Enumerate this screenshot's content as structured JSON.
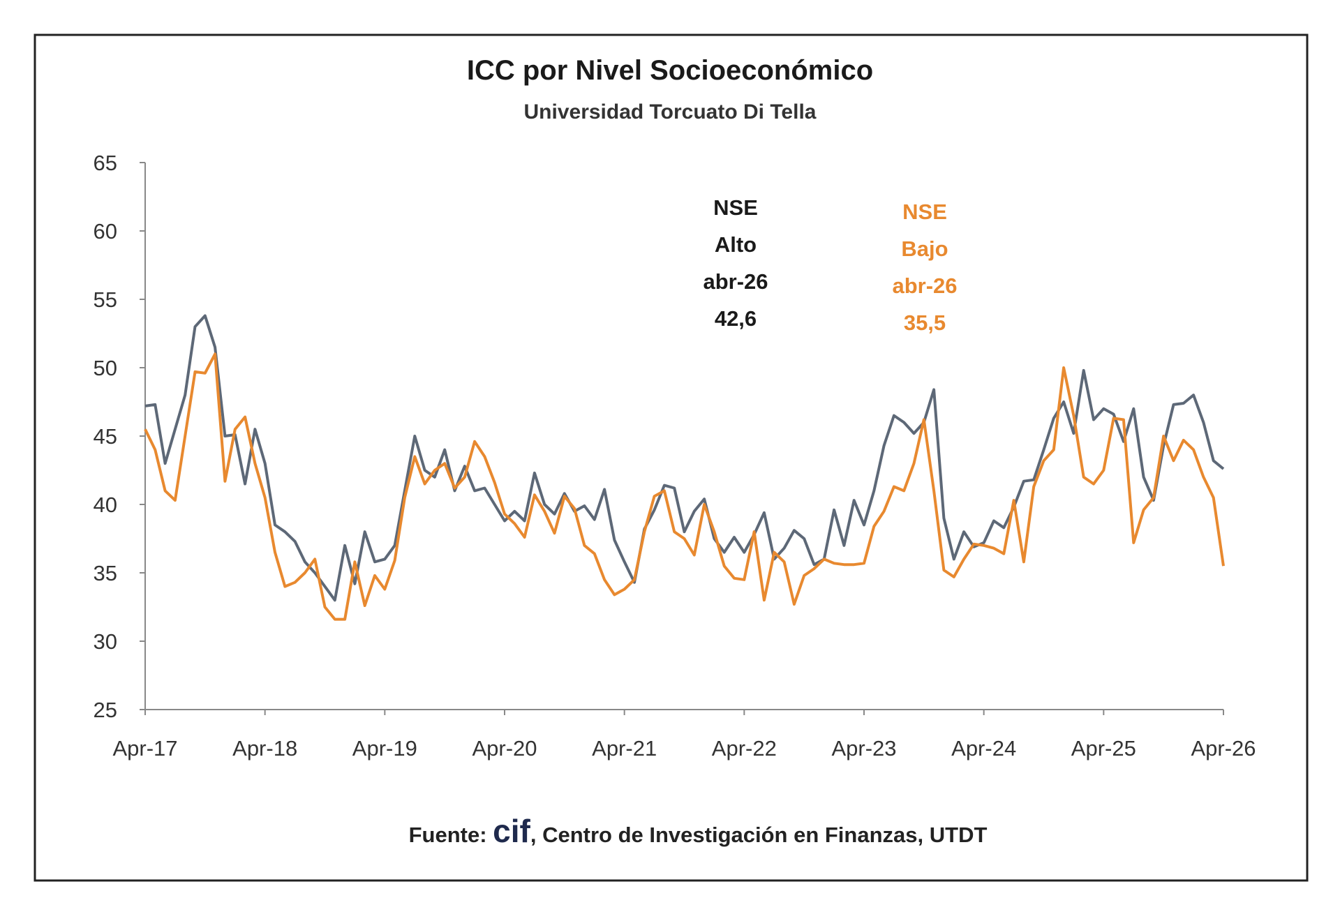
{
  "chart_data": {
    "type": "line",
    "title": "ICC por Nivel Socioeconómico",
    "subtitle": "Universidad Torcuato Di Tella",
    "xlabel": "",
    "ylabel": "",
    "ylim": [
      25,
      65
    ],
    "yticks": [
      "65",
      "60",
      "55",
      "50",
      "45",
      "40",
      "35",
      "30",
      "25"
    ],
    "x_start": "Apr-17",
    "x_end": "Apr-26",
    "x_frequency": "monthly",
    "xticks": [
      "Apr-17",
      "Apr-18",
      "Apr-19",
      "Apr-20",
      "Apr-21",
      "Apr-22",
      "Apr-23",
      "Apr-24",
      "Apr-25",
      "Apr-26"
    ],
    "grid": false,
    "legend": "none",
    "series": [
      {
        "color": "#5d6877",
        "values": [
          47.2,
          47.3,
          43,
          45.5,
          48,
          53,
          53.8,
          51.5,
          45,
          45.1,
          41.5,
          45.5,
          43,
          38.5,
          38,
          37.3,
          35.8,
          35,
          34,
          33,
          37,
          34.2,
          38,
          35.8,
          36,
          37,
          41,
          45,
          42.5,
          42,
          44,
          41,
          42.8,
          41,
          41.2,
          40,
          38.8,
          39.5,
          38.8,
          42.3,
          40,
          39.3,
          40.8,
          39.5,
          39.9,
          38.9,
          41.1,
          37.4,
          35.8,
          34.3,
          38.2,
          39.6,
          41.4,
          41.2,
          38,
          39.5,
          40.4,
          37.5,
          36.5,
          37.6,
          36.5,
          37.8,
          39.4,
          36,
          36.8,
          38.1,
          37.5,
          35.6,
          36,
          39.6,
          37,
          40.3,
          38.5,
          41,
          44.3,
          46.5,
          46,
          45.2,
          46,
          48.4,
          39,
          36,
          38,
          36.9,
          37.2,
          38.8,
          38.3,
          39.8,
          41.7,
          41.8,
          44,
          46.3,
          47.5,
          45.2,
          49.8,
          46.2,
          47,
          46.6,
          44.6,
          47,
          42,
          40.3,
          44.3,
          47.3,
          47.4,
          48,
          46,
          43.2,
          42.6
        ]
      },
      {
        "color": "#e8892f",
        "values": [
          45.5,
          44,
          41,
          40.3,
          45,
          49.7,
          49.6,
          51,
          41.7,
          45.5,
          46.4,
          43,
          40.5,
          36.5,
          34,
          34.3,
          35,
          36,
          32.5,
          31.6,
          31.6,
          35.8,
          32.6,
          34.8,
          33.8,
          35.9,
          40.5,
          43.5,
          41.5,
          42.5,
          43,
          41.2,
          42,
          44.6,
          43.5,
          41.6,
          39.3,
          38.6,
          37.6,
          40.7,
          39.5,
          37.9,
          40.6,
          39.7,
          37,
          36.4,
          34.5,
          33.4,
          33.8,
          34.5,
          38,
          40.6,
          41,
          38,
          37.5,
          36.3,
          40,
          38,
          35.5,
          34.6,
          34.5,
          38,
          33,
          36.5,
          35.8,
          32.7,
          34.8,
          35.3,
          36,
          35.7,
          35.6,
          35.6,
          35.7,
          38.4,
          39.5,
          41.3,
          41,
          43,
          46.2,
          41,
          35.2,
          34.7,
          36,
          37.1,
          37,
          36.8,
          36.4,
          40.3,
          35.8,
          41.3,
          43.2,
          44,
          50,
          46.5,
          42,
          41.5,
          42.5,
          46.3,
          46.2,
          37.2,
          39.6,
          40.5,
          45,
          43.2,
          44.7,
          44,
          42,
          40.5,
          35.5
        ]
      }
    ],
    "annotations": [
      {
        "lines": [
          "NSE",
          "Alto",
          "abr-26",
          "42,6"
        ],
        "color": "#1a1a1a"
      },
      {
        "lines": [
          "NSE",
          "Bajo",
          "abr-26",
          "35,5"
        ],
        "color": "#e8892f"
      }
    ]
  },
  "source": {
    "prefix": "Fuente: ",
    "logo": "cif",
    "text": ", Centro de Investigación en Finanzas, UTDT"
  }
}
